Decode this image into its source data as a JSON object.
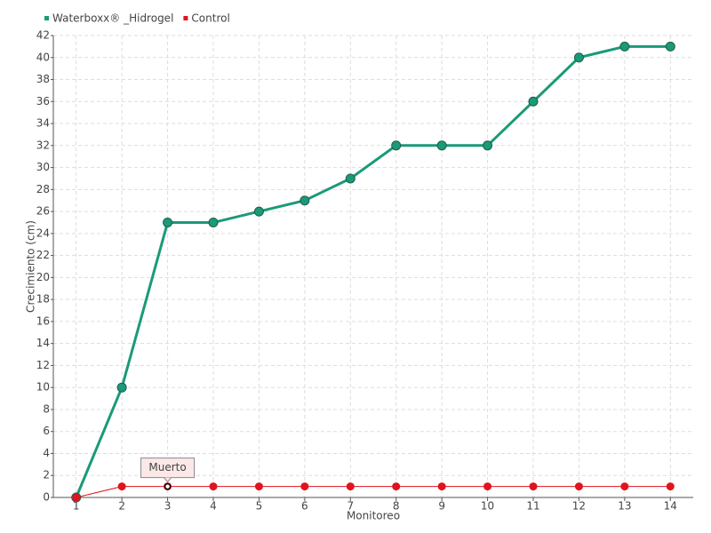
{
  "chart_data": {
    "type": "line",
    "x_label": "Monitoreo",
    "y_label": "Crecimiento (cm)",
    "categories": [
      "1",
      "2",
      "3",
      "4",
      "5",
      "6",
      "7",
      "8",
      "9",
      "10",
      "11",
      "12",
      "13",
      "14"
    ],
    "series": [
      {
        "name": "Waterboxx® _Hidrogel",
        "color": "#1a9a78",
        "values": [
          0,
          10,
          25,
          25,
          26,
          27,
          29,
          32,
          32,
          32,
          36,
          40,
          41,
          41
        ]
      },
      {
        "name": "Control",
        "color": "#e0141e",
        "values": [
          0,
          1,
          1,
          1,
          1,
          1,
          1,
          1,
          1,
          1,
          1,
          1,
          1,
          1
        ]
      }
    ],
    "annotations": [
      {
        "text": "Muerto"
      }
    ],
    "ylim": [
      0,
      42
    ],
    "yticks": [
      0,
      2,
      4,
      6,
      8,
      10,
      12,
      14,
      16,
      18,
      20,
      22,
      24,
      26,
      28,
      30,
      32,
      34,
      36,
      38,
      40,
      42
    ],
    "grid": true
  }
}
